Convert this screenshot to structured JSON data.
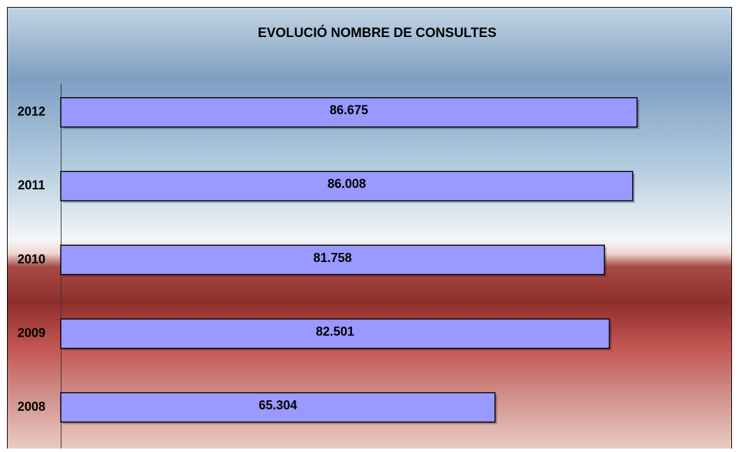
{
  "chart_data": {
    "type": "barh",
    "title": "EVOLUCIÓ NOMBRE DE CONSULTES",
    "categories": [
      "2012",
      "2011",
      "2010",
      "2009",
      "2008"
    ],
    "values": [
      86675,
      86008,
      81758,
      82501,
      65304
    ],
    "value_labels": [
      "86.675",
      "86.008",
      "81.758",
      "82.501",
      "65.304"
    ],
    "color": "#9999ff",
    "xlim": [
      0,
      100000
    ]
  }
}
